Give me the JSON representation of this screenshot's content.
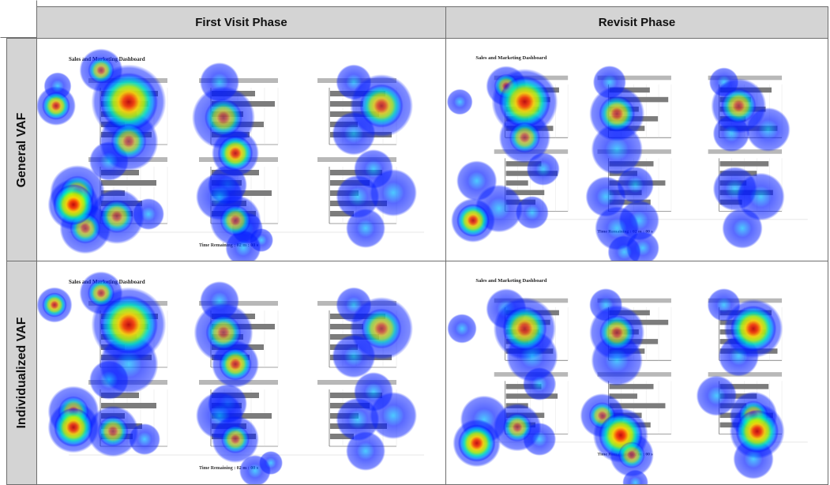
{
  "columns": [
    "First Visit Phase",
    "Revisit Phase"
  ],
  "rows": [
    "General VAF",
    "Individualized VAF"
  ],
  "dashboard": {
    "title": "Sales and Marketing Dashboard",
    "time_label": "Time Remaining :",
    "time_value": "02 m : 00 s"
  },
  "heat_colors": [
    "#0019ff",
    "#00b4ff",
    "#00ffb4",
    "#b4ff00",
    "#ffd400",
    "#ff3c00",
    "#c80000"
  ]
}
